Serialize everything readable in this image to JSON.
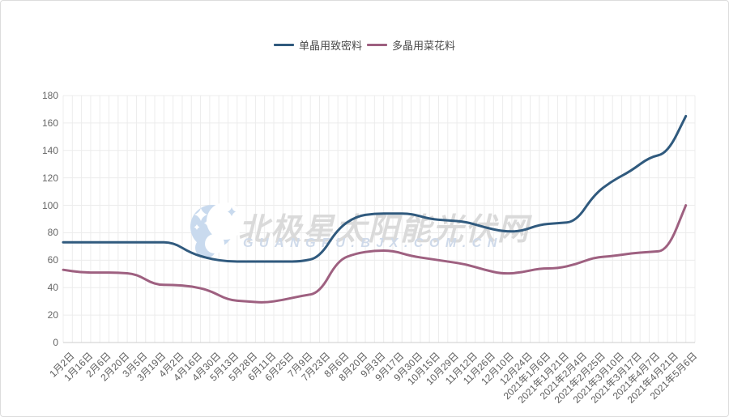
{
  "page": {
    "background": "#ffffff",
    "border_color": "#dcdcdc"
  },
  "legend": {
    "position": "top-center"
  },
  "watermark": {
    "title": "北极星太阳能光伏网",
    "subtitle": "GUANGFU.BJX.COM.CN",
    "logo": "moon-stars-logo",
    "logo_color": "#c9daee",
    "title_color": "#dadada",
    "subtitle_color": "#cfdaea"
  },
  "axis": {
    "grid_color": "#ececec",
    "axis_line_color": "#cccccc",
    "tick_label_color": "#666666"
  },
  "chart_data": {
    "type": "line",
    "title": "",
    "xlabel": "",
    "ylabel": "",
    "ylim": [
      0,
      180
    ],
    "y_ticks": [
      0,
      20,
      40,
      60,
      80,
      100,
      120,
      140,
      160,
      180
    ],
    "grid": true,
    "legend_position": "top-center",
    "x_minor_divisions": 2,
    "categories": [
      "1月2日",
      "1月16日",
      "2月6日",
      "2月20日",
      "3月5日",
      "3月19日",
      "4月2日",
      "4月16日",
      "4月30日",
      "5月13日",
      "5月28日",
      "6月11日",
      "6月25日",
      "7月9日",
      "7月23日",
      "8月6日",
      "8月20日",
      "9月3日",
      "9月17日",
      "9月30日",
      "10月15日",
      "10月29日",
      "11月12日",
      "11月26日",
      "12月10日",
      "12月24日",
      "2021年1月6日",
      "2021年1月21日",
      "2021年2月4日",
      "2021年2月25日",
      "2021年3月10日",
      "2021年3月17日",
      "2021年4月7日",
      "2021年4月21日",
      "2021年5月6日"
    ],
    "series": [
      {
        "name": "单晶用致密料",
        "color": "#305a7e",
        "values": [
          73,
          73,
          73,
          73,
          73,
          73,
          73,
          65,
          61,
          59,
          59,
          59,
          59,
          59,
          62,
          83,
          92,
          94,
          94,
          94,
          90,
          89,
          88,
          84,
          81,
          81,
          86,
          87,
          88,
          108,
          118,
          125,
          135,
          138,
          165
        ]
      },
      {
        "name": "多晶用菜花料",
        "color": "#9e6080",
        "values": [
          53,
          51,
          51,
          51,
          50,
          42,
          42,
          41,
          38,
          31,
          30,
          29,
          31,
          34,
          36,
          60,
          65,
          67,
          67,
          63,
          61,
          59,
          57,
          53,
          50,
          51,
          54,
          54,
          57,
          62,
          63,
          65,
          66,
          67,
          100
        ]
      }
    ]
  }
}
